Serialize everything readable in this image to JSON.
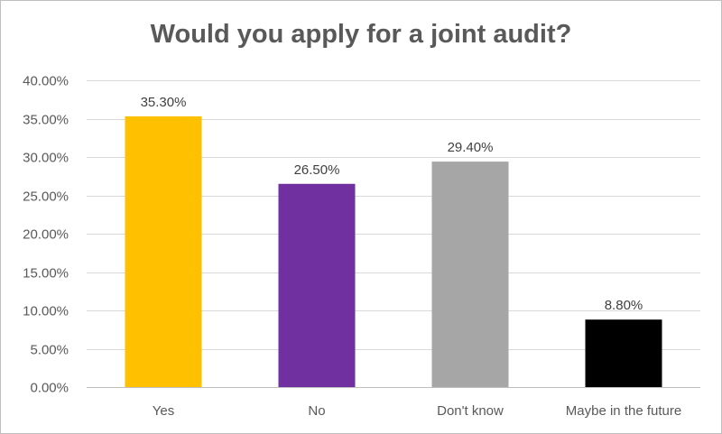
{
  "chart_data": {
    "type": "bar",
    "title": "Would you apply for a joint audit?",
    "categories": [
      "Yes",
      "No",
      "Don't know",
      "Maybe in the future"
    ],
    "values": [
      35.3,
      26.5,
      29.4,
      8.8
    ],
    "data_labels": [
      "35.30%",
      "26.50%",
      "29.40%",
      "8.80%"
    ],
    "colors": [
      "#ffc000",
      "#7030a0",
      "#a6a6a6",
      "#000000"
    ],
    "ylim": [
      0,
      40
    ],
    "yticks": [
      0,
      5,
      10,
      15,
      20,
      25,
      30,
      35,
      40
    ],
    "ytick_labels": [
      "0.00%",
      "5.00%",
      "10.00%",
      "15.00%",
      "20.00%",
      "25.00%",
      "30.00%",
      "35.00%",
      "40.00%"
    ],
    "xlabel": "",
    "ylabel": "",
    "grid": true,
    "legend": "none"
  }
}
